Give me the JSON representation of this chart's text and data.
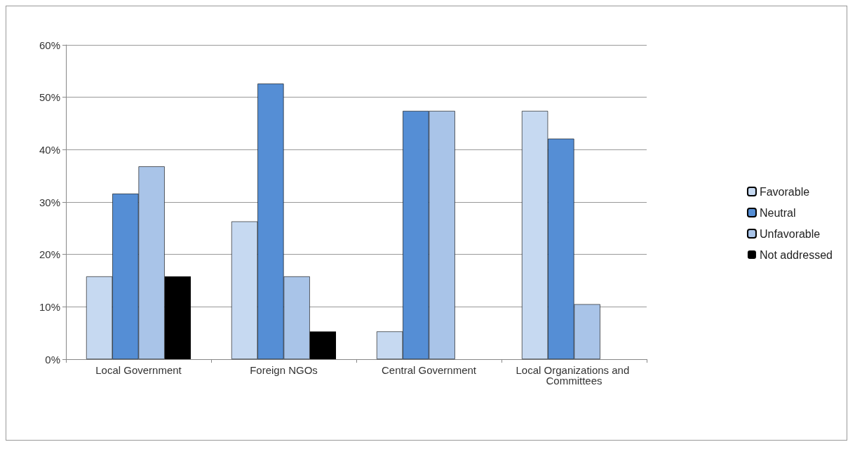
{
  "chart_data": {
    "type": "bar",
    "categories": [
      "Local Government",
      "Foreign NGOs",
      "Central Government",
      "Local Organizations and Committees"
    ],
    "series": [
      {
        "name": "Favorable",
        "color": "#c6d9f1",
        "values": [
          15.8,
          26.3,
          5.3,
          47.4
        ]
      },
      {
        "name": "Neutral",
        "color": "#558ed5",
        "values": [
          31.6,
          52.6,
          47.4,
          42.1
        ]
      },
      {
        "name": "Unfavorable",
        "color": "#a9c4e8",
        "values": [
          36.8,
          15.8,
          47.4,
          10.5
        ]
      },
      {
        "name": "Not addressed",
        "color": "#000000",
        "values": [
          15.8,
          5.3,
          0,
          0
        ]
      }
    ],
    "ylim": [
      0,
      60
    ],
    "yticks": [
      {
        "value": 0,
        "label": "0%"
      },
      {
        "value": 10,
        "label": "10%"
      },
      {
        "value": 20,
        "label": "20%"
      },
      {
        "value": 30,
        "label": "30%"
      },
      {
        "value": 40,
        "label": "40%"
      },
      {
        "value": 50,
        "label": "50%"
      },
      {
        "value": 60,
        "label": "60%"
      }
    ],
    "grid": "y",
    "legend": "right"
  }
}
